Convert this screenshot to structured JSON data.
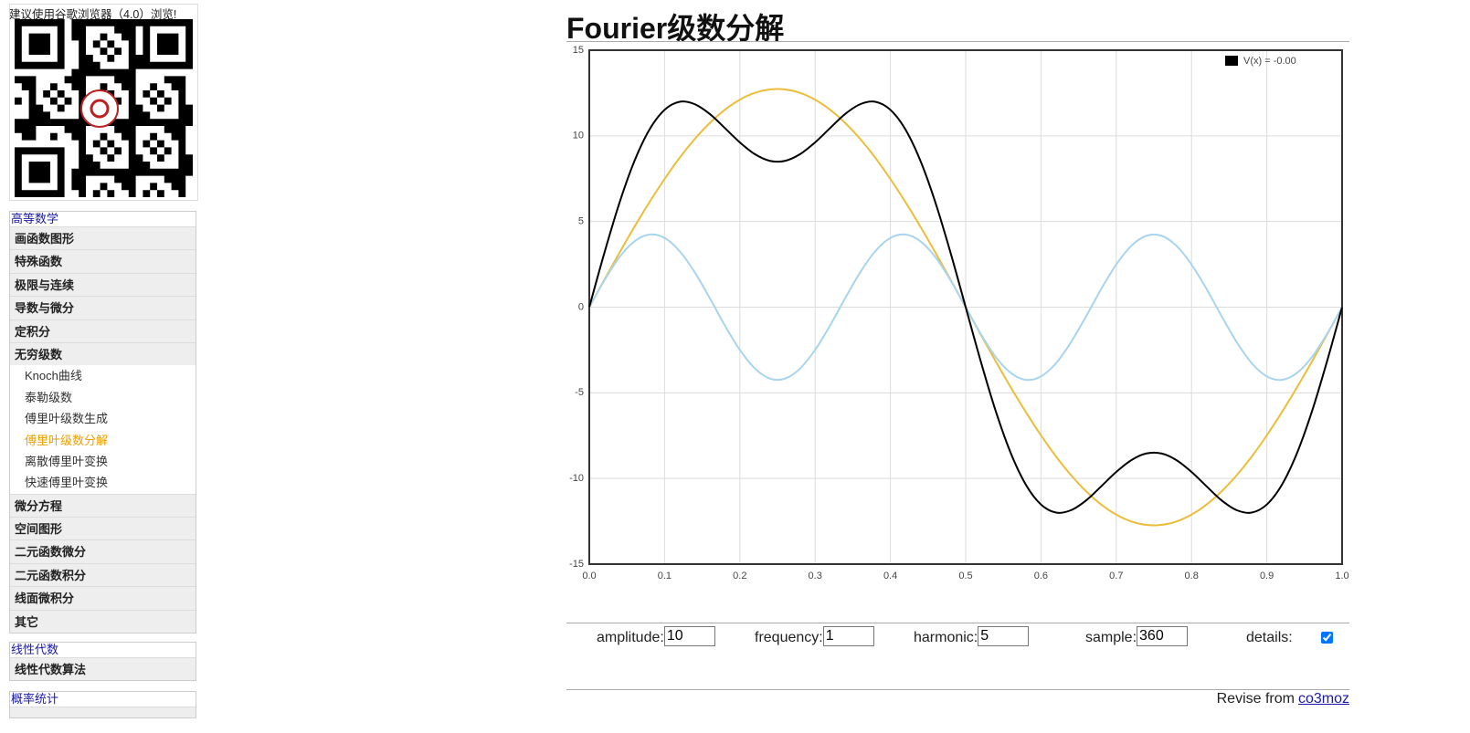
{
  "sidebar": {
    "notice": "建议使用谷歌浏览器（4.0）浏览!",
    "sections": [
      {
        "title": "高等数学",
        "items": [
          "画函数图形",
          "特殊函数",
          "极限与连续",
          "导数与微分",
          "定积分",
          {
            "label": "无穷级数",
            "children": [
              "Knoch曲线",
              "泰勒级数",
              "傅里叶级数生成",
              "傅里叶级数分解",
              "离散傅里叶变换",
              "快速傅里叶变换"
            ],
            "active": 3
          },
          "微分方程",
          "空间图形",
          "二元函数微分",
          "二元函数积分",
          "线面微积分",
          "其它"
        ]
      },
      {
        "title": "线性代数",
        "items": [
          "线性代数算法"
        ]
      },
      {
        "title": "概率统计",
        "items": []
      }
    ]
  },
  "header": {
    "title": "Fourier级数分解"
  },
  "chart_data": {
    "type": "line",
    "x": [
      0,
      0.02,
      0.04,
      0.06,
      0.08,
      0.1,
      0.12,
      0.14,
      0.16,
      0.18,
      0.2,
      0.22,
      0.24,
      0.26,
      0.28,
      0.3,
      0.32,
      0.34,
      0.36,
      0.38,
      0.4,
      0.42,
      0.44,
      0.46,
      0.48,
      0.5,
      0.52,
      0.54,
      0.56,
      0.58,
      0.6,
      0.62,
      0.64,
      0.66,
      0.68,
      0.7,
      0.72,
      0.74,
      0.76,
      0.78,
      0.8,
      0.82,
      0.84,
      0.86,
      0.88,
      0.9,
      0.92,
      0.94,
      0.96,
      0.98,
      1
    ],
    "series": [
      {
        "color": "#ebbd3a",
        "values": [
          0,
          1.6,
          3.17,
          4.69,
          6.13,
          7.48,
          8.72,
          9.81,
          10.75,
          11.52,
          12.11,
          12.51,
          12.71,
          12.71,
          12.51,
          12.11,
          11.52,
          10.75,
          9.81,
          8.72,
          7.48,
          6.13,
          4.69,
          3.17,
          1.6,
          0,
          -1.6,
          -3.17,
          -4.69,
          -6.13,
          -7.48,
          -8.72,
          -9.81,
          -10.75,
          -11.52,
          -12.11,
          -12.51,
          -12.71,
          -12.71,
          -12.51,
          -12.11,
          -11.52,
          -10.75,
          -9.81,
          -8.72,
          -7.48,
          -6.13,
          -4.69,
          -3.17,
          -1.6,
          0
        ]
      },
      {
        "color": "#a9d4ee",
        "values": [
          0,
          1.56,
          2.91,
          3.84,
          4.24,
          4.04,
          3.27,
          2.04,
          0.53,
          -1.06,
          -2.49,
          -3.58,
          -4.17,
          -4.17,
          -3.58,
          -2.49,
          -1.06,
          0.53,
          2.04,
          3.27,
          4.04,
          4.24,
          3.84,
          2.91,
          1.56,
          0,
          -1.56,
          -2.91,
          -3.84,
          -4.24,
          -4.04,
          -3.27,
          -2.04,
          -0.53,
          1.06,
          2.49,
          3.58,
          4.17,
          4.17,
          3.58,
          2.49,
          1.06,
          -0.53,
          -2.04,
          -3.27,
          -4.04,
          -4.24,
          -3.84,
          -2.91,
          -1.56,
          0
        ]
      },
      {
        "name": "V(x) = -0.00",
        "color": "#000000",
        "values": [
          0,
          3.16,
          6.08,
          8.53,
          10.37,
          11.52,
          11.99,
          11.85,
          11.28,
          10.46,
          9.62,
          8.93,
          8.54,
          8.54,
          8.93,
          9.62,
          10.46,
          11.28,
          11.85,
          11.99,
          11.52,
          10.37,
          8.53,
          6.08,
          3.16,
          0,
          -3.16,
          -6.08,
          -8.53,
          -10.37,
          -11.52,
          -11.99,
          -11.85,
          -11.28,
          -10.46,
          -9.62,
          -8.93,
          -8.54,
          -8.54,
          -8.93,
          -9.62,
          -10.46,
          -11.28,
          -11.85,
          -11.99,
          -11.52,
          -10.37,
          -8.53,
          -6.08,
          -3.16,
          0
        ]
      }
    ],
    "xlim": [
      0,
      1
    ],
    "ylim": [
      -15,
      15
    ],
    "xticks": [
      {
        "value": 0,
        "label": "0.0"
      },
      0.1,
      0.2,
      0.3,
      0.4,
      0.5,
      0.6,
      0.7,
      0.8,
      0.9,
      {
        "value": 1,
        "label": "1.0"
      }
    ],
    "yticks": [
      -15,
      -10,
      -5,
      0,
      5,
      10,
      15
    ],
    "grid": true,
    "legend": "top-right"
  },
  "controls": [
    {
      "label": "amplitude:",
      "value": "10"
    },
    {
      "label": "frequency:",
      "value": "1"
    },
    {
      "label": "harmonic:",
      "value": "5"
    },
    {
      "label": "sample:",
      "value": "360"
    },
    {
      "label": "details:",
      "checked": true
    }
  ],
  "footer": {
    "text": "Revise from",
    "link": "co3moz"
  }
}
